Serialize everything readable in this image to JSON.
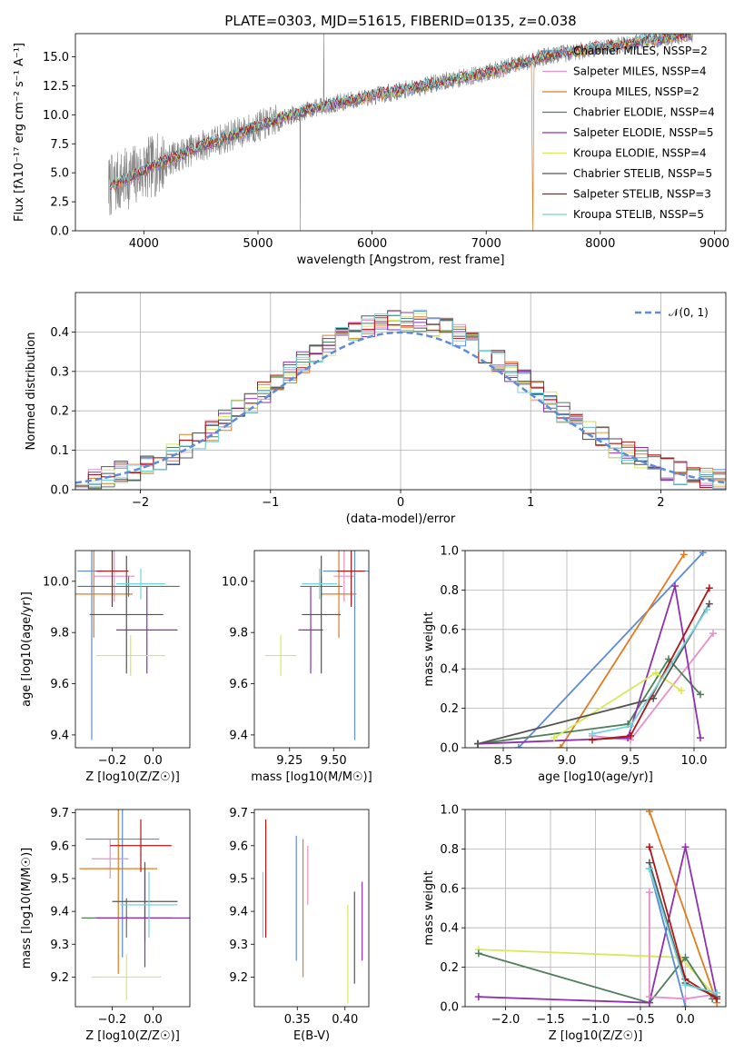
{
  "colors": {
    "Chabrier MILES": "#5b8bd9",
    "Salpeter MILES": "#e68fc8",
    "Kroupa MILES": "#e07b20",
    "Chabrier ELODIE": "#4e7f5a",
    "Salpeter ELODIE": "#8f2fb0",
    "Kroupa ELODIE": "#d8e85a",
    "Chabrier STELIB": "#555555",
    "Salpeter STELIB": "#b01515",
    "Kroupa STELIB": "#73d3dc",
    "spectrum": "#808080"
  },
  "chart_data": [
    {
      "id": "spectrum",
      "type": "line",
      "title": "PLATE=0303, MJD=51615, FIBERID=0135, z=0.038",
      "xlabel": "wavelength [Angstrom, rest frame]",
      "ylabel": "Flux [fλ10⁻¹⁷ erg cm⁻² s⁻¹ A⁻¹]",
      "xlim": [
        3400,
        9100
      ],
      "ylim": [
        0,
        17
      ],
      "xticks": [
        "4000",
        "5000",
        "6000",
        "7000",
        "8000",
        "9000"
      ],
      "yticks": [
        "0.0",
        "2.5",
        "5.0",
        "7.5",
        "10.0",
        "12.5",
        "15.0"
      ],
      "continuum_x": [
        3700,
        4000,
        4500,
        5000,
        5500,
        6000,
        6500,
        7000,
        7500,
        8000,
        8500,
        8800
      ],
      "continuum_y": [
        3.8,
        5.2,
        7.3,
        9.0,
        10.6,
        11.6,
        12.6,
        13.6,
        15.0,
        15.8,
        16.5,
        17.0
      ],
      "legend": [
        {
          "model": "Chabrier MILES",
          "label": "Chabrier MILES, NSSP=2"
        },
        {
          "model": "Salpeter MILES",
          "label": "Salpeter MILES, NSSP=4"
        },
        {
          "model": "Kroupa MILES",
          "label": "Kroupa MILES, NSSP=2"
        },
        {
          "model": "Chabrier ELODIE",
          "label": "Chabrier ELODIE, NSSP=4"
        },
        {
          "model": "Salpeter ELODIE",
          "label": "Salpeter ELODIE, NSSP=5"
        },
        {
          "model": "Kroupa ELODIE",
          "label": "Kroupa ELODIE, NSSP=4"
        },
        {
          "model": "Chabrier STELIB",
          "label": "Chabrier STELIB, NSSP=5"
        },
        {
          "model": "Salpeter STELIB",
          "label": "Salpeter STELIB, NSSP=3"
        },
        {
          "model": "Kroupa STELIB",
          "label": "Kroupa STELIB, NSSP=5"
        }
      ],
      "legend_position": "right"
    },
    {
      "id": "residuals",
      "type": "line",
      "xlabel": "(data-model)/error",
      "ylabel": "Normed distribution",
      "xlim": [
        -2.5,
        2.5
      ],
      "ylim": [
        0,
        0.5
      ],
      "xticks": [
        "−2",
        "−1",
        "0",
        "1",
        "2"
      ],
      "yticks": [
        "0.0",
        "0.1",
        "0.2",
        "0.3",
        "0.4"
      ],
      "gaussian_label": "𝒩(0, 1)",
      "legend_position": "top-right",
      "grid": true
    },
    {
      "id": "z-age",
      "type": "scatter",
      "xlabel": "Z [log10(Z/Z☉)]",
      "ylabel": "age  [log10(age/yr)]",
      "xlim": [
        -0.38,
        0.18
      ],
      "ylim": [
        9.35,
        10.12
      ],
      "xticks": [
        "−0.2",
        "0.0"
      ],
      "yticks": [
        "9.4",
        "9.6",
        "9.8",
        "10.0"
      ],
      "points": [
        {
          "model": "Chabrier MILES",
          "x": -0.3,
          "y": 10.04,
          "xerr": 0.07,
          "yerr": 0.66
        },
        {
          "model": "Salpeter MILES",
          "x": -0.19,
          "y": 10.02,
          "xerr": 0.1,
          "yerr": 0.1
        },
        {
          "model": "Kroupa MILES",
          "x": -0.29,
          "y": 9.95,
          "xerr": 0.19,
          "yerr": 0.17
        },
        {
          "model": "Chabrier ELODIE",
          "x": -0.12,
          "y": 9.98,
          "xerr": 0.25,
          "yerr": 0.04
        },
        {
          "model": "Salpeter ELODIE",
          "x": -0.03,
          "y": 9.81,
          "xerr": 0.15,
          "yerr": 0.17
        },
        {
          "model": "Kroupa ELODIE",
          "x": -0.11,
          "y": 9.71,
          "xerr": 0.17,
          "yerr": 0.08
        },
        {
          "model": "Chabrier STELIB",
          "x": -0.13,
          "y": 9.87,
          "xerr": 0.18,
          "yerr": 0.23
        },
        {
          "model": "Salpeter STELIB",
          "x": -0.2,
          "y": 10.04,
          "xerr": 0.08,
          "yerr": 0.14
        },
        {
          "model": "Kroupa STELIB",
          "x": -0.06,
          "y": 9.99,
          "xerr": 0.12,
          "yerr": 0.06
        }
      ]
    },
    {
      "id": "mass-age",
      "type": "scatter",
      "xlabel": "mass [log10(M/M☉)]",
      "ylabel": "",
      "xlim": [
        9.05,
        9.7
      ],
      "ylim": [
        9.35,
        10.12
      ],
      "xticks": [
        "9.25",
        "9.50"
      ],
      "yticks": [
        "9.4",
        "9.6",
        "9.8",
        "10.0"
      ],
      "points": [
        {
          "model": "Chabrier MILES",
          "x": 9.62,
          "y": 10.04,
          "xerr": 0.18,
          "yerr": 0.66
        },
        {
          "model": "Salpeter MILES",
          "x": 9.56,
          "y": 10.02,
          "xerr": 0.06,
          "yerr": 0.1
        },
        {
          "model": "Kroupa MILES",
          "x": 9.53,
          "y": 9.95,
          "xerr": 0.1,
          "yerr": 0.17
        },
        {
          "model": "Chabrier ELODIE",
          "x": 9.43,
          "y": 9.98,
          "xerr": 0.12,
          "yerr": 0.04
        },
        {
          "model": "Salpeter ELODIE",
          "x": 9.37,
          "y": 9.81,
          "xerr": 0.07,
          "yerr": 0.17
        },
        {
          "model": "Kroupa ELODIE",
          "x": 9.2,
          "y": 9.71,
          "xerr": 0.09,
          "yerr": 0.08
        },
        {
          "model": "Chabrier STELIB",
          "x": 9.43,
          "y": 9.87,
          "xerr": 0.11,
          "yerr": 0.23
        },
        {
          "model": "Salpeter STELIB",
          "x": 9.6,
          "y": 10.04,
          "xerr": 0.08,
          "yerr": 0.14
        },
        {
          "model": "Kroupa STELIB",
          "x": 9.42,
          "y": 9.99,
          "xerr": 0.1,
          "yerr": 0.06
        }
      ]
    },
    {
      "id": "age-weight",
      "type": "line",
      "xlabel": "age  [log10(age/yr)]",
      "ylabel": "mass weight",
      "xlim": [
        8.2,
        10.25
      ],
      "ylim": [
        0,
        1
      ],
      "xticks": [
        "8.5",
        "9.0",
        "9.5",
        "10.0"
      ],
      "yticks": [
        "0.0",
        "0.2",
        "0.4",
        "0.6",
        "0.8",
        "1.0"
      ],
      "grid": true,
      "series": [
        {
          "model": "Chabrier MILES",
          "x": [
            8.62,
            10.07
          ],
          "y": [
            0.0,
            0.99
          ]
        },
        {
          "model": "Kroupa MILES",
          "x": [
            8.95,
            9.92
          ],
          "y": [
            0.0,
            0.98
          ]
        },
        {
          "model": "Salpeter MILES",
          "x": [
            9.2,
            9.5,
            10.15
          ],
          "y": [
            0.06,
            0.04,
            0.58
          ]
        },
        {
          "model": "Chabrier ELODIE",
          "x": [
            8.3,
            9.48,
            9.8,
            10.05
          ],
          "y": [
            0.02,
            0.12,
            0.45,
            0.27
          ]
        },
        {
          "model": "Salpeter ELODIE",
          "x": [
            8.3,
            9.48,
            9.85,
            10.05
          ],
          "y": [
            0.02,
            0.05,
            0.82,
            0.05
          ]
        },
        {
          "model": "Kroupa ELODIE",
          "x": [
            8.9,
            9.7,
            9.9
          ],
          "y": [
            0.05,
            0.38,
            0.29
          ]
        },
        {
          "model": "Chabrier STELIB",
          "x": [
            8.3,
            9.68,
            10.12
          ],
          "y": [
            0.02,
            0.25,
            0.73
          ]
        },
        {
          "model": "Salpeter STELIB",
          "x": [
            9.2,
            9.5,
            10.12
          ],
          "y": [
            0.04,
            0.06,
            0.81
          ]
        },
        {
          "model": "Kroupa STELIB",
          "x": [
            9.2,
            9.5,
            10.1
          ],
          "y": [
            0.07,
            0.11,
            0.7
          ]
        }
      ]
    },
    {
      "id": "z-mass",
      "type": "scatter",
      "xlabel": "Z [log10(Z/Z☉)]",
      "ylabel": "mass [log10(M/M☉)]",
      "xlim": [
        -0.38,
        0.18
      ],
      "ylim": [
        9.11,
        9.71
      ],
      "xticks": [
        "−0.2",
        "0.0"
      ],
      "yticks": [
        "9.2",
        "9.3",
        "9.4",
        "9.5",
        "9.6",
        "9.7"
      ],
      "points": [
        {
          "model": "Chabrier MILES",
          "x": -0.15,
          "y": 9.62,
          "xerr": 0.18,
          "yerr": 0.36
        },
        {
          "model": "Salpeter MILES",
          "x": -0.21,
          "y": 9.56,
          "xerr": 0.09,
          "yerr": 0.06
        },
        {
          "model": "Kroupa MILES",
          "x": -0.17,
          "y": 9.53,
          "xerr": 0.19,
          "yerr": 0.32
        },
        {
          "model": "Chabrier ELODIE",
          "x": -0.13,
          "y": 9.38,
          "xerr": 0.22,
          "yerr": 0.06
        },
        {
          "model": "Salpeter ELODIE",
          "x": -0.04,
          "y": 9.38,
          "xerr": 0.24,
          "yerr": 0.15
        },
        {
          "model": "Kroupa ELODIE",
          "x": -0.13,
          "y": 9.2,
          "xerr": 0.17,
          "yerr": 0.07
        },
        {
          "model": "Chabrier STELIB",
          "x": -0.04,
          "y": 9.43,
          "xerr": 0.16,
          "yerr": 0.12
        },
        {
          "model": "Salpeter STELIB",
          "x": -0.06,
          "y": 9.6,
          "xerr": 0.15,
          "yerr": 0.08
        },
        {
          "model": "Kroupa STELIB",
          "x": -0.02,
          "y": 9.42,
          "xerr": 0.14,
          "yerr": 0.1
        }
      ]
    },
    {
      "id": "ebv-mass",
      "type": "scatter",
      "xlabel": "E(B-V)",
      "ylabel": "",
      "xlim": [
        0.305,
        0.425
      ],
      "ylim": [
        9.11,
        9.71
      ],
      "xticks": [
        "0.35",
        "0.40"
      ],
      "yticks": [
        "9.2",
        "9.3",
        "9.4",
        "9.5",
        "9.6",
        "9.7"
      ],
      "points": [
        {
          "model": "Kroupa STELIB",
          "x": 0.314,
          "y": 9.42,
          "yerr": 0.1
        },
        {
          "model": "Salpeter STELIB",
          "x": 0.317,
          "y": 9.5,
          "yerr": 0.18
        },
        {
          "model": "Chabrier MILES",
          "x": 0.349,
          "y": 9.44,
          "yerr": 0.19
        },
        {
          "model": "Kroupa MILES",
          "x": 0.356,
          "y": 9.41,
          "yerr": 0.21
        },
        {
          "model": "Salpeter MILES",
          "x": 0.361,
          "y": 9.51,
          "yerr": 0.09
        },
        {
          "model": "Kroupa ELODIE",
          "x": 0.403,
          "y": 9.27,
          "yerr": 0.15
        },
        {
          "model": "Chabrier STELIB",
          "x": 0.41,
          "y": 9.32,
          "yerr": 0.14
        },
        {
          "model": "Salpeter ELODIE",
          "x": 0.418,
          "y": 9.37,
          "yerr": 0.12
        }
      ]
    },
    {
      "id": "z-weight",
      "type": "line",
      "xlabel": "Z [log10(Z/Z☉)]",
      "ylabel": "mass weight",
      "xlim": [
        -2.45,
        0.45
      ],
      "ylim": [
        0,
        1
      ],
      "xticks": [
        "−2.0",
        "−1.5",
        "−1.0",
        "−0.5",
        "0.0"
      ],
      "yticks": [
        "0.0",
        "0.2",
        "0.4",
        "0.6",
        "0.8",
        "1.0"
      ],
      "grid": true,
      "series": [
        {
          "model": "Kroupa ELODIE",
          "x": [
            -2.3,
            -0.05,
            0.3
          ],
          "y": [
            0.29,
            0.25,
            0.07
          ]
        },
        {
          "model": "Chabrier ELODIE",
          "x": [
            -2.3,
            -0.4,
            0.0,
            0.3
          ],
          "y": [
            0.27,
            0.02,
            0.25,
            0.04
          ]
        },
        {
          "model": "Salpeter ELODIE",
          "x": [
            -2.3,
            -0.4,
            0.0,
            0.35
          ],
          "y": [
            0.05,
            0.02,
            0.81,
            0.05
          ]
        },
        {
          "model": "Kroupa MILES",
          "x": [
            -0.4,
            0.35
          ],
          "y": [
            0.99,
            0.02
          ]
        },
        {
          "model": "Chabrier MILES",
          "x": [
            -0.4,
            0.0
          ],
          "y": [
            0.7,
            0.0
          ]
        },
        {
          "model": "Salpeter MILES",
          "x": [
            -0.4,
            -0.4,
            0.0,
            0.3
          ],
          "y": [
            0.58,
            0.05,
            0.04,
            0.06
          ]
        },
        {
          "model": "Chabrier STELIB",
          "x": [
            -0.4,
            0.0,
            0.35
          ],
          "y": [
            0.73,
            0.12,
            0.05
          ]
        },
        {
          "model": "Salpeter STELIB",
          "x": [
            -0.4,
            0.0,
            0.35
          ],
          "y": [
            0.81,
            0.14,
            0.04
          ]
        },
        {
          "model": "Kroupa STELIB",
          "x": [
            -0.4,
            0.0,
            0.35
          ],
          "y": [
            0.7,
            0.11,
            0.07
          ]
        }
      ]
    }
  ]
}
